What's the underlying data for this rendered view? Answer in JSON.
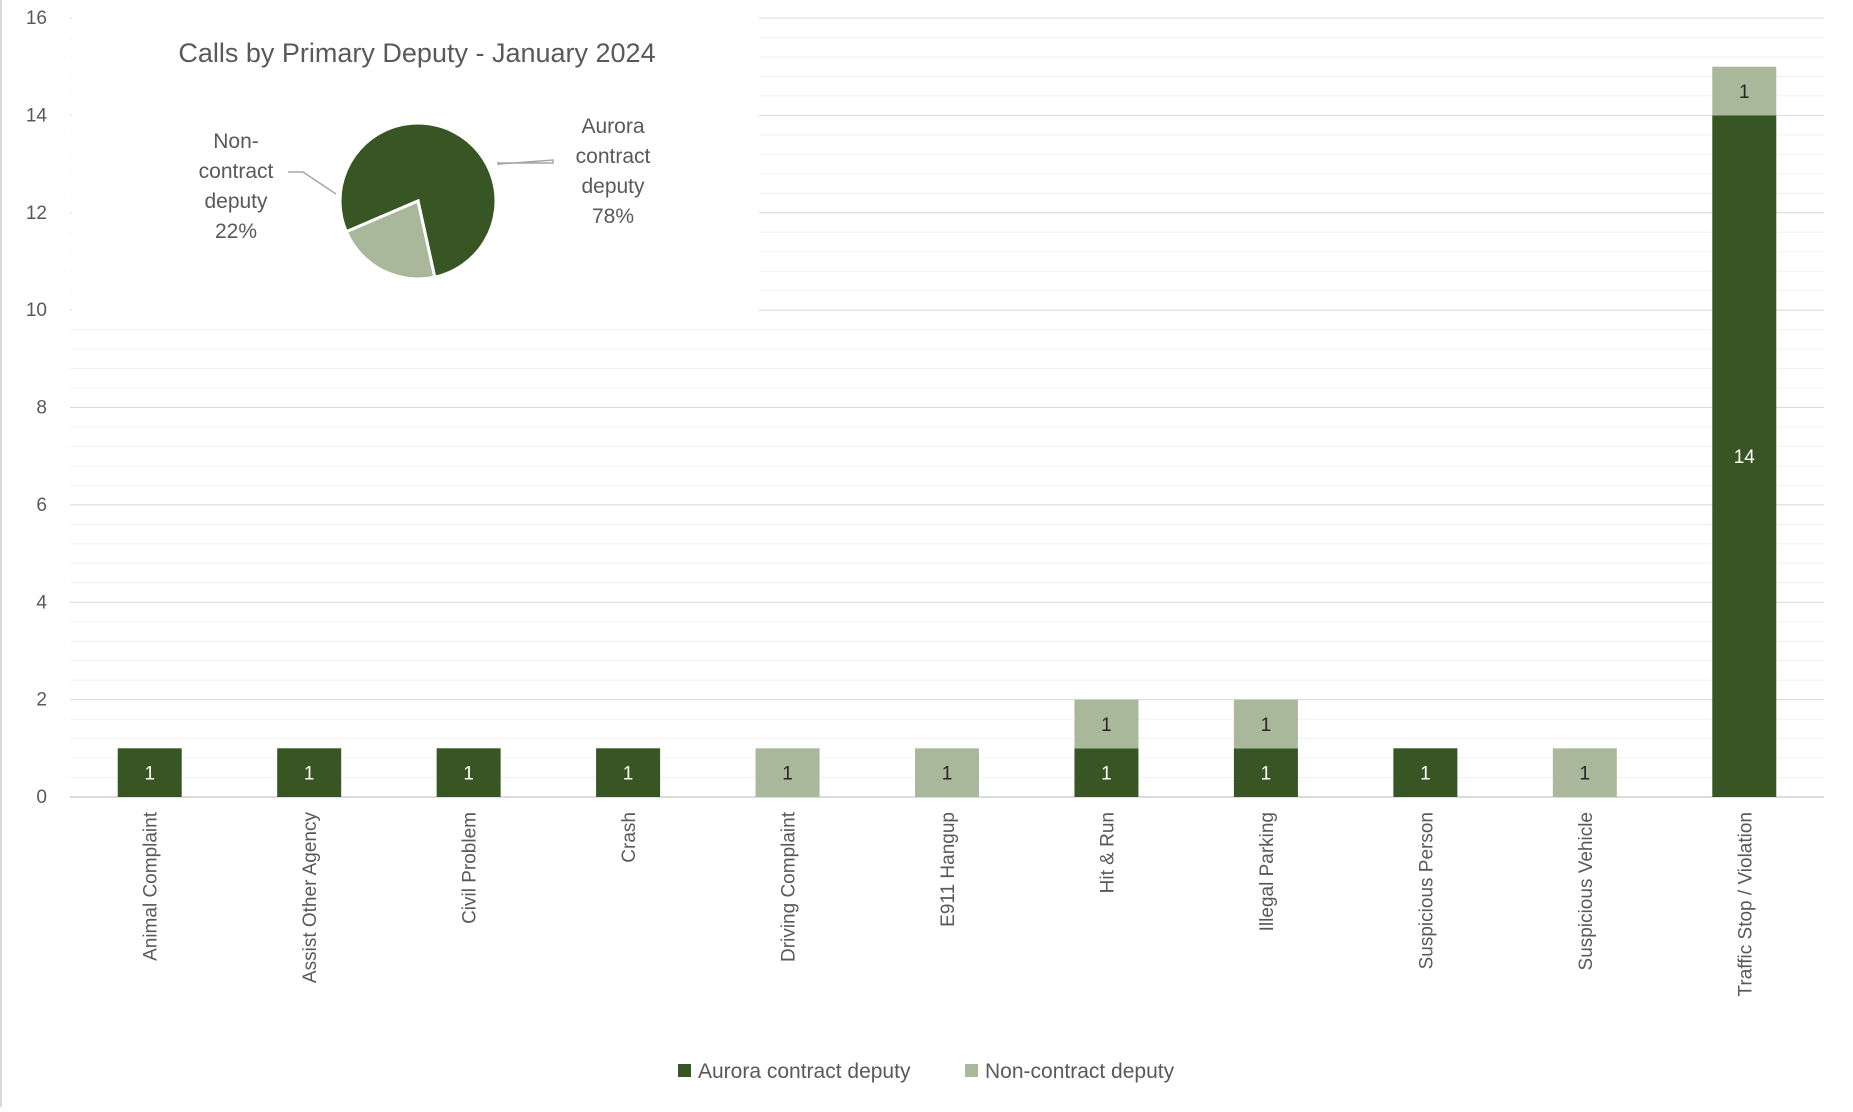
{
  "chart_data": [
    {
      "type": "bar",
      "stacked": true,
      "categories": [
        "Animal Complaint",
        "Assist Other Agency",
        "Civil Problem",
        "Crash",
        "Driving Complaint",
        "E911 Hangup",
        "Hit & Run",
        "Illegal Parking",
        "Suspicious Person",
        "Suspicious Vehicle",
        "Traffic Stop / Violation"
      ],
      "series": [
        {
          "name": "Aurora contract deputy",
          "color": "#375623",
          "values": [
            1,
            1,
            1,
            1,
            0,
            0,
            1,
            1,
            1,
            0,
            14
          ]
        },
        {
          "name": "Non-contract deputy",
          "color": "#a9b89b",
          "values": [
            0,
            0,
            0,
            0,
            1,
            1,
            1,
            1,
            0,
            1,
            1
          ]
        }
      ],
      "ylim": [
        0,
        16
      ],
      "yticks": [
        0,
        2,
        4,
        6,
        8,
        10,
        12,
        14,
        16
      ],
      "xlabel": "",
      "ylabel": "",
      "grid": true,
      "legend": "bottom"
    },
    {
      "type": "pie",
      "title": "Calls by Primary Deputy - January 2024",
      "slices": [
        {
          "label": "Aurora contract deputy",
          "percent_label": "78%",
          "value": 78,
          "color": "#375623"
        },
        {
          "label": "Non-contract deputy",
          "percent_label": "22%",
          "value": 22,
          "color": "#a9b89b"
        }
      ]
    }
  ]
}
